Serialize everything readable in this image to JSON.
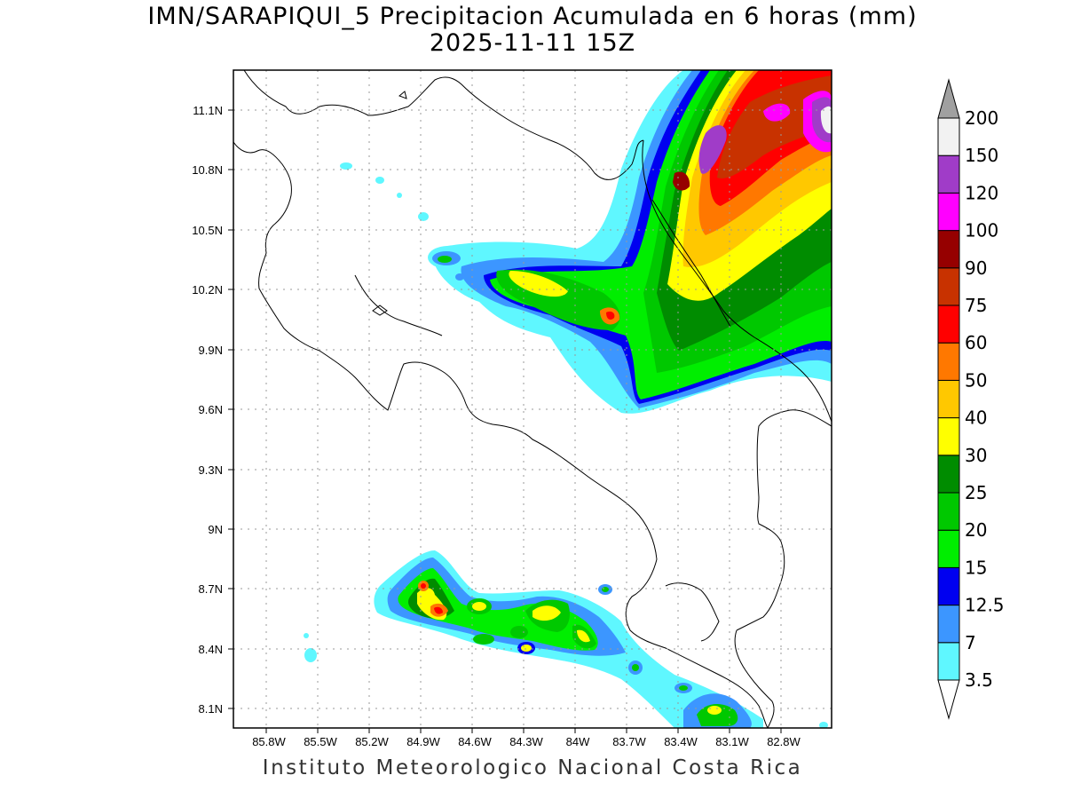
{
  "title": {
    "line1": "IMN/SARAPIQUI_5 Precipitacion Acumulada en 6 horas (mm)",
    "line2": "2025-11-11 15Z"
  },
  "footer": "Instituto Meteorologico Nacional Costa Rica",
  "map": {
    "lon_ticks": [
      "85.8W",
      "85.5W",
      "85.2W",
      "84.9W",
      "84.6W",
      "84.3W",
      "84W",
      "83.7W",
      "83.4W",
      "83.1W",
      "82.8W"
    ],
    "lat_ticks": [
      "8.1N",
      "8.4N",
      "8.7N",
      "9N",
      "9.3N",
      "9.6N",
      "9.9N",
      "10.2N",
      "10.5N",
      "10.8N",
      "11.1N"
    ]
  },
  "colorbar": {
    "labels": [
      "3.5",
      "7",
      "12.5",
      "15",
      "20",
      "25",
      "30",
      "40",
      "50",
      "60",
      "75",
      "90",
      "100",
      "120",
      "150",
      "200"
    ],
    "colors": [
      "#5ff7ff",
      "#3c96ff",
      "#0000f0",
      "#00ee00",
      "#00c800",
      "#008c00",
      "#ffff00",
      "#ffc800",
      "#ff7800",
      "#ff0000",
      "#c83200",
      "#960000",
      "#ff00ff",
      "#a03cc8",
      "#f2f2f2",
      "#a0a0a0"
    ]
  }
}
